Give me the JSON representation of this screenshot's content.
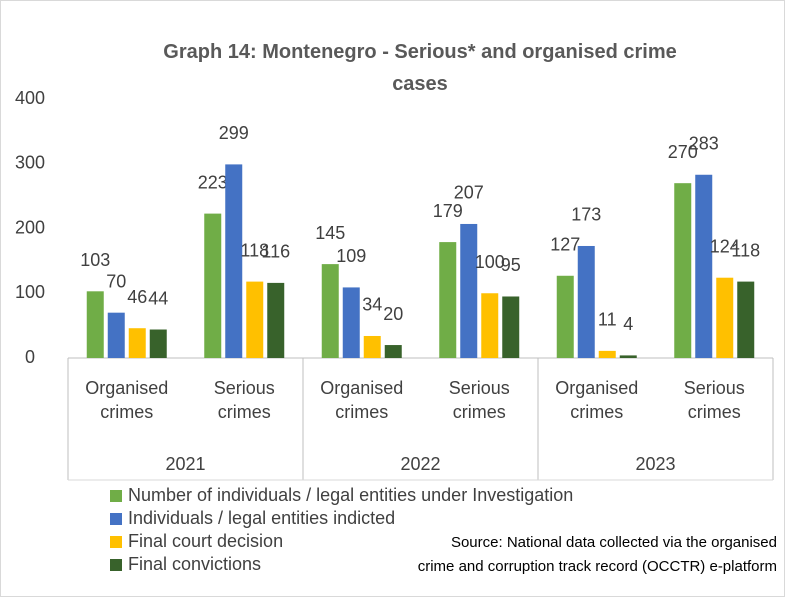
{
  "chart_data": {
    "type": "bar",
    "title": "Graph 14: Montenegro - Serious* and organised crime cases",
    "categories": [
      "Organised crimes",
      "Serious crimes",
      "Organised crimes",
      "Serious crimes",
      "Organised crimes",
      "Serious crimes"
    ],
    "groups": [
      "2021",
      "2022",
      "2023"
    ],
    "series": [
      {
        "name": "Number of individuals / legal entities under Investigation",
        "color": "#70ad47",
        "values": [
          103,
          223,
          145,
          179,
          127,
          270
        ]
      },
      {
        "name": "Individuals / legal entities indicted",
        "color": "#4472c4",
        "values": [
          70,
          299,
          109,
          207,
          173,
          283
        ]
      },
      {
        "name": "Final court decision",
        "color": "#ffc000",
        "values": [
          46,
          118,
          34,
          100,
          11,
          124
        ]
      },
      {
        "name": "Final convictions",
        "color": "#38622b",
        "values": [
          44,
          116,
          20,
          95,
          4,
          118
        ]
      }
    ],
    "ylim": [
      0,
      400
    ],
    "yticks": [
      0,
      100,
      200,
      300,
      400
    ],
    "grid": false,
    "source": [
      "Source: National data collected via the organised",
      "crime and corruption track record (OCCTR) e-platform"
    ]
  }
}
